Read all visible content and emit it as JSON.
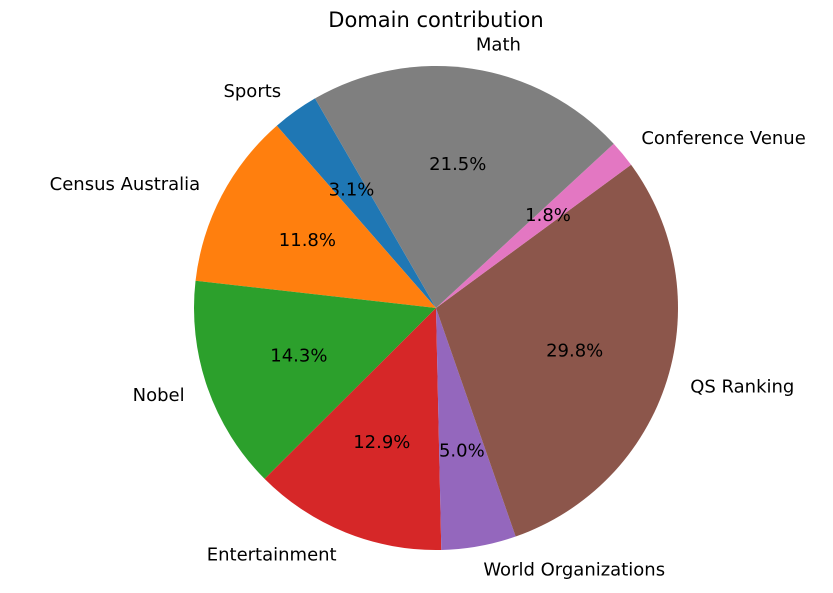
{
  "chart_data": {
    "type": "pie",
    "title": "Domain contribution",
    "start_angle_deg": 120,
    "direction": "counterclockwise",
    "slices": [
      {
        "label": "Sports",
        "value": 3.1,
        "pct_label": "3.1%",
        "color": "#1f77b4"
      },
      {
        "label": "Census Australia",
        "value": 11.8,
        "pct_label": "11.8%",
        "color": "#ff7f0e"
      },
      {
        "label": "Nobel",
        "value": 14.3,
        "pct_label": "14.3%",
        "color": "#2ca02c"
      },
      {
        "label": "Entertainment",
        "value": 12.9,
        "pct_label": "12.9%",
        "color": "#d62728"
      },
      {
        "label": "World Organizations",
        "value": 5.0,
        "pct_label": "5.0%",
        "color": "#9467bd"
      },
      {
        "label": "QS Ranking",
        "value": 29.8,
        "pct_label": "29.8%",
        "color": "#8c564b"
      },
      {
        "label": "Conference Venue",
        "value": 1.8,
        "pct_label": "1.8%",
        "color": "#e377c2"
      },
      {
        "label": "Math",
        "value": 21.5,
        "pct_label": "21.5%",
        "color": "#7f7f7f"
      }
    ]
  }
}
